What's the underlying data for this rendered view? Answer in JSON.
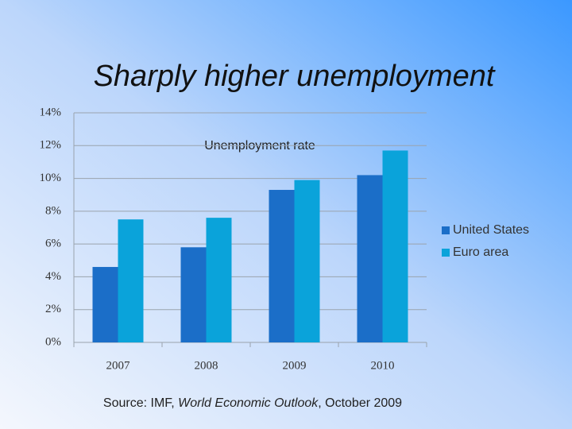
{
  "slide_title": "Sharply higher unemployment",
  "source": [
    "Source: IMF, ",
    "World Economic Outlook",
    ", October 2009"
  ],
  "chart_data": {
    "type": "bar",
    "title": "Unemployment rate",
    "categories": [
      "2007",
      "2008",
      "2009",
      "2010"
    ],
    "series": [
      {
        "name": "United States",
        "color": "#1b6ec8",
        "values": [
          4.6,
          5.8,
          9.3,
          10.2
        ]
      },
      {
        "name": "Euro area",
        "color": "#0aa3da",
        "values": [
          7.5,
          7.6,
          9.9,
          11.7
        ]
      }
    ],
    "ylim": [
      0,
      14
    ],
    "yticks": [
      {
        "value": 0,
        "label": "0%"
      },
      {
        "value": 2,
        "label": "2%"
      },
      {
        "value": 4,
        "label": "4%"
      },
      {
        "value": 6,
        "label": "6%"
      },
      {
        "value": 8,
        "label": "8%"
      },
      {
        "value": 10,
        "label": "10%"
      },
      {
        "value": 12,
        "label": "12%"
      },
      {
        "value": 14,
        "label": "14%"
      }
    ],
    "grid": true,
    "legend": "right"
  }
}
